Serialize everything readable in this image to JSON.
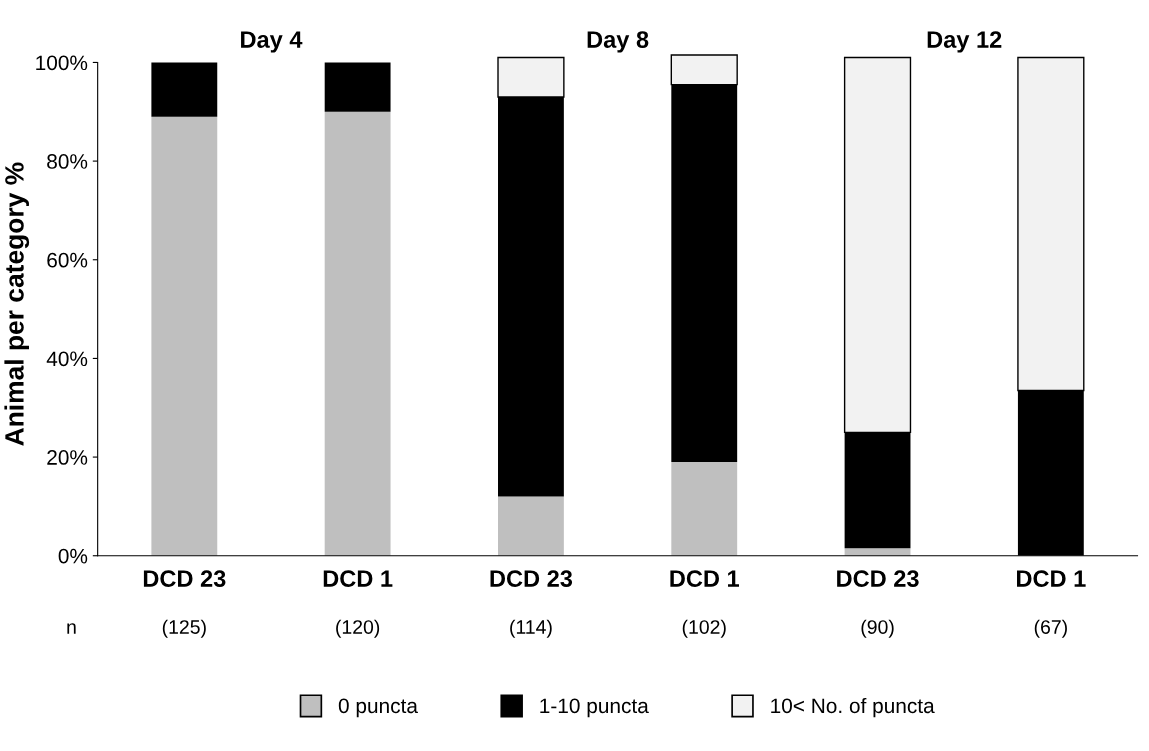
{
  "chart_data": {
    "type": "bar",
    "stacked": true,
    "ylabel": "Animal per category %",
    "categories": [
      "DCD 23",
      "DCD 1",
      "DCD 23",
      "DCD 1",
      "DCD 23",
      "DCD 1"
    ],
    "series": [
      {
        "name": "0 puncta",
        "color": "#bfbfbf",
        "values": [
          89,
          90,
          12,
          19,
          1.5,
          0
        ]
      },
      {
        "name": "1-10 puncta",
        "color": "#000000",
        "values": [
          11,
          10,
          81,
          76.5,
          23.5,
          33.5
        ]
      },
      {
        "name": "10< No. of puncta",
        "color": "#f2f2f2",
        "values": [
          0,
          0,
          8,
          6,
          76,
          67.5
        ]
      }
    ],
    "ylim": [
      0,
      102
    ],
    "yticks": [
      {
        "value": 0,
        "label": "0%"
      },
      {
        "value": 20,
        "label": "20%"
      },
      {
        "value": 40,
        "label": "40%"
      },
      {
        "value": 60,
        "label": "60%"
      },
      {
        "value": 80,
        "label": "80%"
      },
      {
        "value": 100,
        "label": "100%"
      }
    ],
    "grid": false,
    "legend": "bottom",
    "annotations": [
      "Day 4",
      "Day 8",
      "Day 12",
      "n",
      "(125)",
      "(120)",
      "(114)",
      "(102)",
      "(90)",
      "(67)"
    ]
  }
}
